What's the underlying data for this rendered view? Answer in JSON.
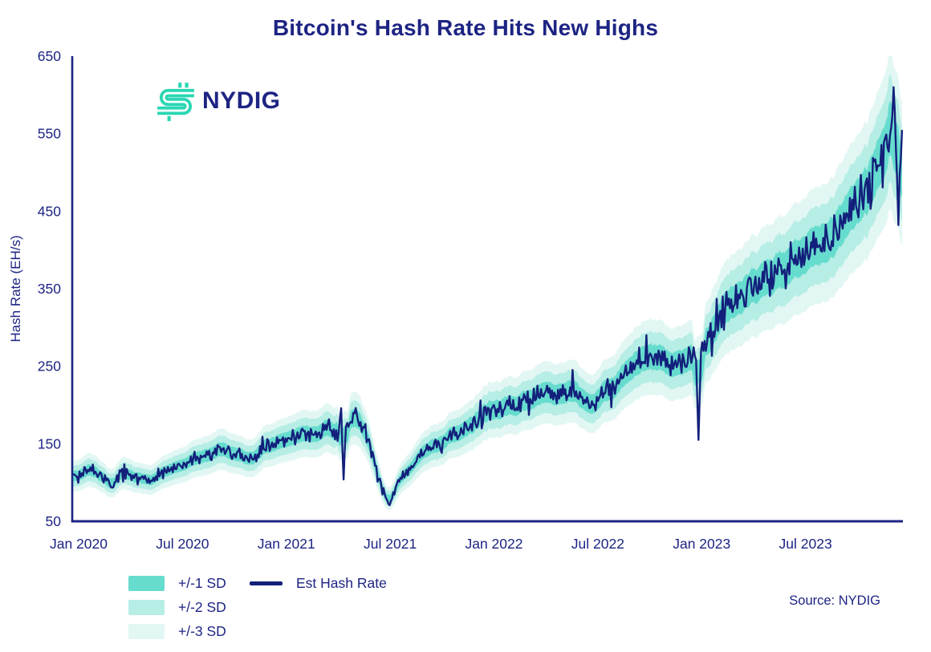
{
  "brand": {
    "name": "NYDIG",
    "teal": "#2bd7b4",
    "navy": "#1d2483"
  },
  "chart": {
    "title": "Bitcoin's Hash Rate Hits New Highs",
    "source": "Source: NYDIG"
  },
  "legend": {
    "bands": [
      {
        "label": "+/-1 SD",
        "color": "#66dcce"
      },
      {
        "label": "+/-2 SD",
        "color": "#b6ede5"
      },
      {
        "label": "+/-3 SD",
        "color": "#e2f7f3"
      }
    ],
    "line": {
      "label": "Est Hash Rate",
      "color": "#13207b"
    }
  },
  "chart_data": {
    "type": "line",
    "title": "Bitcoin's Hash Rate Hits New Highs",
    "ylabel": "Hash Rate (EH/s)",
    "xlabel": "",
    "ylim": [
      50,
      650
    ],
    "yticks": [
      50,
      150,
      250,
      350,
      450,
      550,
      650
    ],
    "x_unit": "months_since_jan_2020",
    "xlim_months": [
      0,
      48
    ],
    "xticks": [
      {
        "t": 0,
        "label": "Jan 2020"
      },
      {
        "t": 6,
        "label": "Jul 2020"
      },
      {
        "t": 12,
        "label": "Jan 2021"
      },
      {
        "t": 18,
        "label": "Jul 2021"
      },
      {
        "t": 24,
        "label": "Jan 2022"
      },
      {
        "t": 30,
        "label": "Jul 2022"
      },
      {
        "t": 36,
        "label": "Jan 2023"
      },
      {
        "t": 42,
        "label": "Jul 2023"
      }
    ],
    "grid": false,
    "legend_position": "bottom-left",
    "series": [
      {
        "name": "Est Hash Rate",
        "color": "#13207b",
        "anchors_month_value": [
          [
            0,
            108
          ],
          [
            0.5,
            112
          ],
          [
            1,
            117
          ],
          [
            1.5,
            110
          ],
          [
            2,
            104
          ],
          [
            2.3,
            96
          ],
          [
            3,
            116
          ],
          [
            3.5,
            110
          ],
          [
            4,
            103
          ],
          [
            4.5,
            99
          ],
          [
            5,
            111
          ],
          [
            5.5,
            116
          ],
          [
            6,
            121
          ],
          [
            6.5,
            124
          ],
          [
            7,
            127
          ],
          [
            7.5,
            131
          ],
          [
            8,
            139
          ],
          [
            8.5,
            142
          ],
          [
            9,
            141
          ],
          [
            9.5,
            136
          ],
          [
            10,
            130
          ],
          [
            10.5,
            134
          ],
          [
            11,
            142
          ],
          [
            11.5,
            147
          ],
          [
            12,
            151
          ],
          [
            12.5,
            155
          ],
          [
            13,
            158
          ],
          [
            13.5,
            161
          ],
          [
            14,
            163
          ],
          [
            14.5,
            166
          ],
          [
            15,
            169
          ],
          [
            15.3,
            155
          ],
          [
            15.6,
            172
          ],
          [
            16,
            178
          ],
          [
            16.4,
            190
          ],
          [
            16.8,
            172
          ],
          [
            17.2,
            148
          ],
          [
            17.6,
            118
          ],
          [
            18,
            92
          ],
          [
            18.3,
            68
          ],
          [
            18.6,
            88
          ],
          [
            19,
            108
          ],
          [
            19.5,
            116
          ],
          [
            20,
            134
          ],
          [
            20.5,
            142
          ],
          [
            21,
            149
          ],
          [
            21.5,
            155
          ],
          [
            22,
            162
          ],
          [
            22.5,
            168
          ],
          [
            23,
            172
          ],
          [
            23.5,
            180
          ],
          [
            24,
            192
          ],
          [
            24.5,
            196
          ],
          [
            25,
            199
          ],
          [
            25.5,
            201
          ],
          [
            26,
            203
          ],
          [
            26.5,
            208
          ],
          [
            27,
            212
          ],
          [
            27.5,
            217
          ],
          [
            28,
            220
          ],
          [
            28.5,
            217
          ],
          [
            29,
            211
          ],
          [
            29.5,
            205
          ],
          [
            30,
            200
          ],
          [
            30.5,
            208
          ],
          [
            31,
            221
          ],
          [
            31.5,
            232
          ],
          [
            32,
            242
          ],
          [
            32.5,
            251
          ],
          [
            33,
            258
          ],
          [
            33.5,
            262
          ],
          [
            34,
            262
          ],
          [
            34.5,
            257
          ],
          [
            35,
            251
          ],
          [
            35.5,
            255
          ],
          [
            36,
            261
          ],
          [
            36.5,
            272
          ],
          [
            37,
            294
          ],
          [
            37.5,
            312
          ],
          [
            38,
            329
          ],
          [
            38.5,
            336
          ],
          [
            39,
            342
          ],
          [
            39.5,
            352
          ],
          [
            40,
            361
          ],
          [
            40.5,
            368
          ],
          [
            41,
            374
          ],
          [
            41.5,
            381
          ],
          [
            42,
            388
          ],
          [
            42.5,
            395
          ],
          [
            43,
            402
          ],
          [
            43.5,
            410
          ],
          [
            44,
            420
          ],
          [
            44.5,
            435
          ],
          [
            45,
            450
          ],
          [
            45.5,
            465
          ],
          [
            46,
            480
          ],
          [
            46.5,
            505
          ],
          [
            47,
            528
          ],
          [
            47.3,
            545
          ],
          [
            47.6,
            552
          ],
          [
            47.8,
            548
          ],
          [
            48,
            538
          ]
        ]
      }
    ],
    "spikes_month_value": [
      [
        2.35,
        94
      ],
      [
        15.55,
        196
      ],
      [
        15.7,
        104
      ],
      [
        36.18,
        155
      ],
      [
        47.45,
        610
      ],
      [
        47.75,
        432
      ]
    ],
    "bands": {
      "sd_fraction_per_unit": 0.062,
      "multipliers": [
        1,
        2,
        3
      ],
      "colors": [
        "#66dcce",
        "#b6ede5",
        "#e2f7f3"
      ]
    },
    "noise": {
      "seed": 42,
      "step_months": 0.07,
      "scale": 0.055
    }
  }
}
